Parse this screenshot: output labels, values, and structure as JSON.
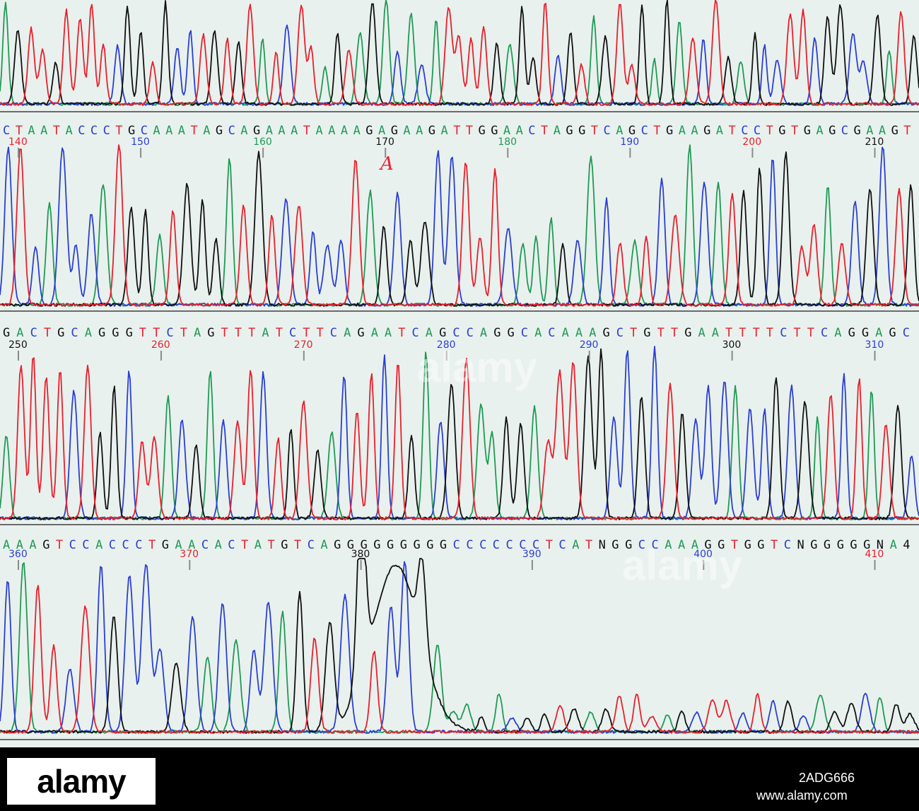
{
  "title": "",
  "colors": {
    "A": "#1f9a55",
    "C": "#2b3fd1",
    "G": "#111111",
    "T": "#e8202c",
    "paper": "#e9f1ee",
    "separator": "#6b6b6b"
  },
  "rows": [
    {
      "sequence": "CTAATACCCTGCAAATAGCAGAAATAAAAGAGAAGATTGGAACTAGGTCAGCTGAAGATCCTGTGAGCGAAGT",
      "positions": [
        {
          "label": "140",
          "color": "#e8202c"
        },
        {
          "label": "150",
          "color": "#2b3fd1"
        },
        {
          "label": "160",
          "color": "#1f9a55"
        },
        {
          "label": "170",
          "color": "#111111"
        },
        {
          "label": "180",
          "color": "#1f9a55"
        },
        {
          "label": "190",
          "color": "#2b3fd1"
        },
        {
          "label": "200",
          "color": "#e8202c"
        },
        {
          "label": "210",
          "color": "#111111"
        }
      ]
    },
    {
      "sequence": "GACTGCAGGGTTCTAGTTTATCTTCAGAATCAGCCAGGCACAAAGCTGTTGAATTTTCTTCAGGAGC",
      "positions": [
        {
          "label": "250",
          "color": "#111111"
        },
        {
          "label": "260",
          "color": "#e8202c"
        },
        {
          "label": "270",
          "color": "#e8202c"
        },
        {
          "label": "280",
          "color": "#2b3fd1"
        },
        {
          "label": "290",
          "color": "#2b3fd1"
        },
        {
          "label": "300",
          "color": "#111111"
        },
        {
          "label": "310",
          "color": "#2b3fd1"
        }
      ]
    },
    {
      "sequence": "AAAGTCCACCCTGAACACTATGTCAGGGGGGGGGCCCCCCCTCATNGGCCAAAGGTGGTCNGGGGGNA4",
      "positions": [
        {
          "label": "360",
          "color": "#2b3fd1"
        },
        {
          "label": "370",
          "color": "#e8202c"
        },
        {
          "label": "380",
          "color": "#111111"
        },
        {
          "label": "390",
          "color": "#2b3fd1"
        },
        {
          "label": "400",
          "color": "#2b3fd1"
        },
        {
          "label": "410",
          "color": "#e8202c"
        }
      ]
    }
  ],
  "annotation": {
    "text": "A",
    "color": "#e8202c"
  },
  "watermark": {
    "logo": "alamy",
    "stock_id": "2ADG666",
    "url": "www.alamy.com"
  }
}
